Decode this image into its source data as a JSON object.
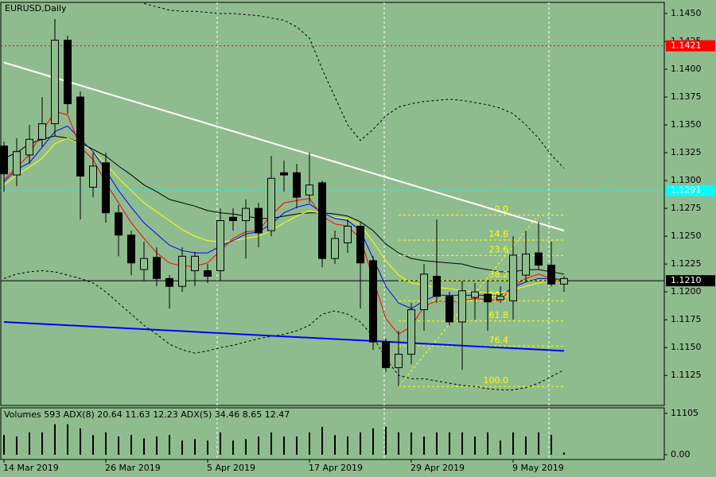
{
  "chart_data": {
    "type": "candlestick",
    "title": "EURUSD,Daily",
    "categories": [
      "14 Mar 2019",
      null,
      null,
      null,
      null,
      null,
      null,
      null,
      "26 Mar 2019",
      null,
      null,
      null,
      null,
      null,
      null,
      null,
      "5 Apr 2019",
      null,
      null,
      null,
      null,
      null,
      null,
      null,
      "17 Apr 2019",
      null,
      null,
      null,
      null,
      null,
      null,
      null,
      "29 Apr 2019",
      null,
      null,
      null,
      null,
      null,
      null,
      null,
      "9 May 2019",
      null,
      null,
      null,
      null
    ],
    "open": [
      1.1331,
      1.1305,
      1.1323,
      1.1337,
      1.1351,
      1.1426,
      1.1375,
      1.1294,
      1.1316,
      1.1271,
      1.1251,
      1.122,
      1.1231,
      1.1212,
      1.1205,
      1.1219,
      1.1219,
      1.1219,
      1.1267,
      1.1264,
      1.1275,
      1.1255,
      1.1307,
      1.1307,
      1.1287,
      1.1298,
      1.123,
      1.1244,
      1.1259,
      1.1228,
      1.1155,
      1.1132,
      1.1144,
      1.1184,
      1.1214,
      1.1196,
      1.1173,
      1.1195,
      1.1198,
      1.1193,
      1.1192,
      1.1215,
      1.1235,
      1.1224,
      1.1207
    ],
    "high": [
      1.1335,
      1.1338,
      1.135,
      1.1375,
      1.1445,
      1.143,
      1.138,
      1.1325,
      1.1325,
      1.1278,
      1.1255,
      1.1245,
      1.124,
      1.1215,
      1.124,
      1.1236,
      1.1225,
      1.1275,
      1.1275,
      1.1283,
      1.128,
      1.1322,
      1.1318,
      1.1315,
      1.1325,
      1.13,
      1.1255,
      1.1265,
      1.1262,
      1.1232,
      1.1158,
      1.1165,
      1.119,
      1.1225,
      1.1265,
      1.12,
      1.121,
      1.1208,
      1.121,
      1.1205,
      1.125,
      1.1255,
      1.1263,
      1.1245,
      1.1214
    ],
    "low": [
      1.129,
      1.1295,
      1.1315,
      1.133,
      1.134,
      1.136,
      1.1265,
      1.1285,
      1.1262,
      1.1232,
      1.1215,
      1.121,
      1.1205,
      1.1185,
      1.12,
      1.1205,
      1.1208,
      1.121,
      1.1255,
      1.123,
      1.124,
      1.125,
      1.129,
      1.1275,
      1.128,
      1.1222,
      1.1225,
      1.1235,
      1.1185,
      1.1148,
      1.1128,
      1.1115,
      1.1135,
      1.1165,
      1.119,
      1.117,
      1.113,
      1.1175,
      1.1165,
      1.119,
      1.1175,
      1.121,
      1.122,
      1.1205,
      1.12
    ],
    "close": [
      1.1306,
      1.1326,
      1.1337,
      1.1351,
      1.1426,
      1.1369,
      1.1304,
      1.1313,
      1.1271,
      1.1251,
      1.1226,
      1.123,
      1.1212,
      1.1205,
      1.1232,
      1.1232,
      1.1214,
      1.1264,
      1.1264,
      1.1275,
      1.1253,
      1.1302,
      1.1305,
      1.1285,
      1.1296,
      1.123,
      1.1248,
      1.1259,
      1.1226,
      1.1155,
      1.1132,
      1.1144,
      1.1184,
      1.1216,
      1.1196,
      1.1173,
      1.1201,
      1.12,
      1.1191,
      1.1196,
      1.1233,
      1.1234,
      1.1224,
      1.1207,
      1.1212
    ],
    "up_color": "#8fbc8f",
    "down_color": "#000000",
    "ylim": [
      1.1098,
      1.146
    ],
    "yticks": [
      {
        "value": 1.145,
        "label": "1.1450"
      },
      1.1425,
      {
        "value": 1.14,
        "label": "1.1400"
      },
      1.1375,
      {
        "value": 1.135,
        "label": "1.1350"
      },
      1.1325,
      {
        "value": 1.13,
        "label": "1.1300"
      },
      1.1275,
      {
        "value": 1.125,
        "label": "1.1250"
      },
      1.1225,
      {
        "value": 1.12,
        "label": "1.1200"
      },
      1.1175,
      {
        "value": 1.115,
        "label": "1.1150"
      },
      1.1125
    ],
    "overlays": [
      {
        "color": "#000000",
        "style": "solid",
        "values": [
          1.132,
          1.1325,
          1.1333,
          1.1337,
          1.134,
          1.1338,
          1.1334,
          1.1328,
          1.1322,
          1.1313,
          1.1305,
          1.1296,
          1.129,
          1.1283,
          1.128,
          1.1277,
          1.1273,
          1.1271,
          1.127,
          1.1268,
          1.1266,
          1.1266,
          1.1268,
          1.127,
          1.1271,
          1.1271,
          1.127,
          1.1268,
          1.1263,
          1.1255,
          1.1243,
          1.1235,
          1.123,
          1.1228,
          1.1227,
          1.1226,
          1.1225,
          1.1222,
          1.122,
          1.1218,
          1.1218,
          1.122,
          1.122,
          1.1218,
          1.1216
        ]
      },
      {
        "color": "#ffff00",
        "style": "solid",
        "values": [
          1.1296,
          1.1305,
          1.1312,
          1.132,
          1.1333,
          1.1338,
          1.1333,
          1.1326,
          1.1315,
          1.1302,
          1.1291,
          1.128,
          1.1272,
          1.1264,
          1.1256,
          1.125,
          1.1246,
          1.1245,
          1.1246,
          1.1248,
          1.125,
          1.1255,
          1.1262,
          1.1268,
          1.1273,
          1.127,
          1.1267,
          1.1266,
          1.126,
          1.1245,
          1.1228,
          1.1215,
          1.1208,
          1.1206,
          1.1204,
          1.1203,
          1.1201,
          1.12,
          1.1199,
          1.1199,
          1.1202,
          1.1205,
          1.1208,
          1.121,
          1.121
        ]
      },
      {
        "color": "#0000ff",
        "style": "solid",
        "values": [
          1.1299,
          1.131,
          1.1316,
          1.133,
          1.1344,
          1.1349,
          1.1337,
          1.1326,
          1.1309,
          1.1291,
          1.1276,
          1.1262,
          1.1252,
          1.1242,
          1.1237,
          1.1235,
          1.1235,
          1.1241,
          1.1246,
          1.1252,
          1.1254,
          1.1261,
          1.1271,
          1.1276,
          1.1279,
          1.1271,
          1.1266,
          1.1264,
          1.1255,
          1.123,
          1.1205,
          1.119,
          1.1185,
          1.1192,
          1.1197,
          1.1197,
          1.1197,
          1.1197,
          1.1197,
          1.1197,
          1.1204,
          1.1209,
          1.1212,
          1.1212,
          1.1211
        ]
      },
      {
        "color": "#ff0000",
        "style": "solid",
        "values": [
          1.1301,
          1.1312,
          1.1323,
          1.1344,
          1.1362,
          1.1359,
          1.133,
          1.1319,
          1.1298,
          1.128,
          1.1262,
          1.1248,
          1.1235,
          1.1226,
          1.1223,
          1.1223,
          1.1226,
          1.1237,
          1.1248,
          1.1254,
          1.1255,
          1.1269,
          1.128,
          1.1282,
          1.1284,
          1.1268,
          1.1261,
          1.1259,
          1.1248,
          1.1212,
          1.1176,
          1.1162,
          1.1169,
          1.1187,
          1.1192,
          1.1191,
          1.1192,
          1.1194,
          1.1193,
          1.1192,
          1.1205,
          1.1212,
          1.1216,
          1.1212,
          1.1209
        ]
      },
      {
        "color": "#000000",
        "style": "dotted",
        "values": [
          null,
          null,
          null,
          null,
          null,
          null,
          null,
          null,
          null,
          null,
          null,
          1.1459,
          1.1456,
          1.1453,
          1.1452,
          1.1452,
          1.1451,
          1.145,
          1.145,
          1.1449,
          1.1448,
          1.1446,
          1.1444,
          1.1438,
          1.1428,
          1.14,
          1.1375,
          1.135,
          1.1336,
          1.1346,
          1.1358,
          1.1366,
          1.1369,
          1.1371,
          1.1372,
          1.1373,
          1.1372,
          1.137,
          1.1368,
          1.1365,
          1.136,
          1.135,
          1.1338,
          1.1323,
          1.1311
        ]
      },
      {
        "color": "#000000",
        "style": "dotted",
        "values": [
          1.1212,
          1.1216,
          1.1218,
          1.1219,
          1.1218,
          1.1215,
          1.1212,
          1.1208,
          1.12,
          1.119,
          1.118,
          1.117,
          1.1162,
          1.1153,
          1.1148,
          1.1145,
          1.1147,
          1.115,
          1.1152,
          1.1155,
          1.1158,
          1.116,
          1.1162,
          1.1165,
          1.117,
          1.118,
          1.1183,
          1.118,
          1.1173,
          1.116,
          1.114,
          1.1125,
          1.1122,
          1.1122,
          1.112,
          1.1118,
          1.1116,
          1.1115,
          1.1113,
          1.1112,
          1.1112,
          1.1114,
          1.1118,
          1.1124,
          1.113
        ]
      }
    ],
    "trendlines": [
      {
        "color": "#ffffff",
        "from": 0,
        "to": 44,
        "start": 1.1406,
        "end": 1.1255
      },
      {
        "color": "#0000ff",
        "from": 0,
        "to": 44,
        "start": 1.1173,
        "end": 1.1147
      }
    ],
    "levels": [
      {
        "value": 1.1421,
        "color": "#ff0000",
        "text_color": "#ffffff",
        "style": "dotted"
      },
      {
        "value": 1.1291,
        "color": "#00ffff",
        "text_color": "#ffffff",
        "style": "dotted"
      },
      {
        "value": 1.121,
        "label": "1.1210",
        "color": "#000000",
        "text_color": "#ffffff",
        "style": "solid"
      }
    ],
    "fibonacci": {
      "color": "#ffff00",
      "from": 31,
      "to": 42,
      "extend_to": 44,
      "high": 1.1269,
      "low": 1.1115,
      "levels": [
        {
          "value": 0,
          "label": "0.0"
        },
        14.6,
        23.6,
        38.2,
        {
          "value": 50,
          "label": "50.0"
        },
        61.8,
        76.4,
        {
          "value": 100,
          "label": "100.0"
        }
      ]
    },
    "volumes": {
      "label": "Volumes 593 ADX(8) 20.64 11.63 12.23 ADX(5) 34.46 8.65 12.47",
      "color": "#000000",
      "values": [
        5300,
        4900,
        6000,
        6000,
        8200,
        8200,
        7100,
        5300,
        6000,
        4900,
        5300,
        4400,
        4900,
        5300,
        3800,
        4200,
        3800,
        6000,
        3800,
        4200,
        4900,
        6000,
        4900,
        4900,
        6000,
        7500,
        5300,
        4900,
        6000,
        7100,
        7500,
        6000,
        6000,
        4900,
        6000,
        6000,
        6000,
        4900,
        6000,
        3800,
        6000,
        4900,
        6000,
        5300,
        593
      ],
      "ylim": [
        0,
        11105
      ],
      "yticks": [
        11105,
        {
          "value": 0,
          "label": "0.00"
        }
      ]
    }
  }
}
